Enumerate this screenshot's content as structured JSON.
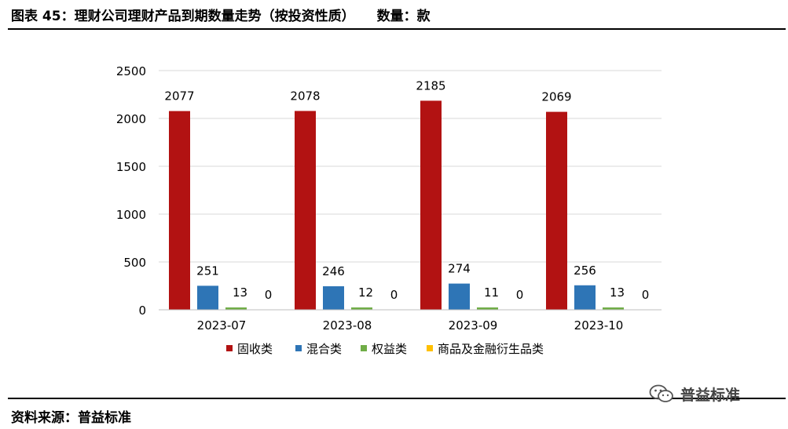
{
  "header": {
    "title": "图表 45：理财公司理财产品到期数量走势（按投资性质）",
    "unit": "数量：款"
  },
  "footer": {
    "source": "资料来源：普益标准"
  },
  "watermark": {
    "text": "普益标准",
    "icon": "wechat-icon"
  },
  "chart_data": {
    "type": "bar",
    "categories": [
      "2023-07",
      "2023-08",
      "2023-09",
      "2023-10"
    ],
    "series": [
      {
        "name": "固收类",
        "color": "#b21212",
        "values": [
          2077,
          2078,
          2185,
          2069
        ]
      },
      {
        "name": "混合类",
        "color": "#2e75b6",
        "values": [
          251,
          246,
          274,
          256
        ]
      },
      {
        "name": "权益类",
        "color": "#70ad47",
        "values": [
          13,
          12,
          11,
          13
        ]
      },
      {
        "name": "商品及金融衍生品类",
        "color": "#ffc000",
        "values": [
          0,
          0,
          0,
          0
        ]
      }
    ],
    "ylim": [
      0,
      2500
    ],
    "yticks": [
      0,
      500,
      1000,
      1500,
      2000,
      2500
    ],
    "grid": true,
    "legend_position": "bottom",
    "data_labels": true
  }
}
